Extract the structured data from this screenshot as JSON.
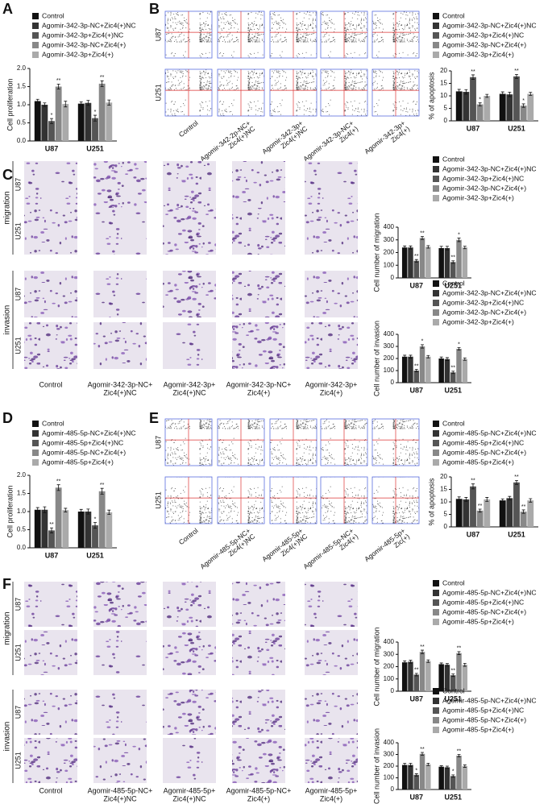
{
  "panel_labels": [
    "A",
    "B",
    "C",
    "D",
    "E",
    "F"
  ],
  "figures": {
    "B": {
      "row_labels": [
        "U87",
        "U251"
      ],
      "column_labels": [
        [
          "Control"
        ],
        [
          "Agomir-342-2p-NC+",
          "Zic4(+)NC"
        ],
        [
          "Agomir-342-3p+",
          "Zic4(+)NC"
        ],
        [
          "Agomir-342-3p-NC+",
          "Zic4(+)"
        ],
        [
          "Agomir-342-3p+",
          "Zic4(+)"
        ]
      ]
    },
    "C": {
      "group_labels": [
        "migration",
        "invasion"
      ],
      "row_labels": [
        "U87",
        "U251"
      ],
      "column_labels": [
        [
          "Control"
        ],
        [
          "Agomir-342-3p-NC+",
          "Zic4(+)NC"
        ],
        [
          "Agomir-342-3p+",
          "Zic4(+)NC"
        ],
        [
          "Agomir-342-3p-NC+",
          "Zic4(+)"
        ],
        [
          "Agomir-342-3p+",
          "Zic4(+)"
        ]
      ]
    },
    "E": {
      "row_labels": [
        "U87",
        "U251"
      ],
      "column_labels": [
        [
          "Control"
        ],
        [
          "Agomir-485-5p-NC+",
          "Zic4(+)NC"
        ],
        [
          "Agomir-485-5p+",
          "Zic4(+)NC"
        ],
        [
          "Agomir-485-5p-NC+",
          "Zic4(+)"
        ],
        [
          "Agomir-485-5p+",
          "Zic(+)"
        ]
      ]
    },
    "F": {
      "group_labels": [
        "migration",
        "invasion"
      ],
      "row_labels": [
        "U87",
        "U251"
      ],
      "column_labels": [
        [
          "Control"
        ],
        [
          "Agomir-485-5p-NC+",
          "Zic4(+)NC"
        ],
        [
          "Agomir-485-5p+",
          "Zic4(+)NC"
        ],
        [
          "Agomir-485-5p-NC+",
          "Zic4(+)"
        ],
        [
          "Agomir-485-5p+",
          "Zic4(+)"
        ]
      ]
    }
  },
  "chart_data": [
    {
      "type": "bar",
      "ylabel": "Cell proliferation",
      "categories": [
        "U87",
        "U251"
      ],
      "ylim": [
        0,
        2
      ],
      "yticks": [
        {
          "value": 0,
          "label": "0.0"
        },
        0.5,
        {
          "value": 1,
          "label": "1.0"
        },
        1.5,
        {
          "value": 2,
          "label": "2.0"
        }
      ],
      "series": [
        {
          "name": "Control",
          "color": "#111111",
          "values": [
            1.1,
            1.03
          ],
          "errors": [
            0.05,
            0.05
          ],
          "annotations": [
            null,
            null
          ]
        },
        {
          "name": "Agomir-342-3p-NC+Zic4(+)NC",
          "color": "#333333",
          "values": [
            1.0,
            1.05
          ],
          "errors": [
            0.05,
            0.07
          ],
          "annotations": [
            null,
            null
          ]
        },
        {
          "name": "Agomir-342-3p+Zic4(+)NC",
          "color": "#555555",
          "values": [
            0.55,
            0.63
          ],
          "errors": [
            0.07,
            0.08
          ],
          "annotations": [
            "*",
            "*"
          ]
        },
        {
          "name": "Agomir-342-3p-NC+Zic4(+)",
          "color": "#888888",
          "values": [
            1.5,
            1.58
          ],
          "errors": [
            0.07,
            0.08
          ],
          "annotations": [
            "**",
            "**"
          ]
        },
        {
          "name": "Agomir-342-3p+Zic4(+)",
          "color": "#aaaaaa",
          "values": [
            1.02,
            1.06
          ],
          "errors": [
            0.08,
            0.07
          ],
          "annotations": [
            null,
            null
          ]
        }
      ]
    },
    {
      "type": "bar",
      "ylabel": "% of apoptosis",
      "categories": [
        "U87",
        "U251"
      ],
      "ylim": [
        0,
        20
      ],
      "yticks": [
        0,
        5,
        10,
        15,
        20
      ],
      "series": [
        {
          "name": "Control",
          "color": "#111111",
          "values": [
            11.8,
            10.8
          ],
          "errors": [
            0.8,
            0.8
          ],
          "annotations": [
            null,
            null
          ]
        },
        {
          "name": "Agomir-342-3p-NC+Zic4(+)NC",
          "color": "#333333",
          "values": [
            11.6,
            10.6
          ],
          "errors": [
            0.9,
            0.9
          ],
          "annotations": [
            null,
            null
          ]
        },
        {
          "name": "Agomir-342-3p+Zic4(+)NC",
          "color": "#555555",
          "values": [
            17.5,
            17.8
          ],
          "errors": [
            0.9,
            0.8
          ],
          "annotations": [
            "**",
            "**"
          ]
        },
        {
          "name": "Agomir-342-3p-NC+Zic4(+)",
          "color": "#888888",
          "values": [
            6.6,
            6.1
          ],
          "errors": [
            0.6,
            0.7
          ],
          "annotations": [
            "*",
            "*"
          ]
        },
        {
          "name": "Agomir-342-3p+Zic4(+)",
          "color": "#aaaaaa",
          "values": [
            10.0,
            10.8
          ],
          "errors": [
            0.6,
            0.6
          ],
          "annotations": [
            null,
            null
          ]
        }
      ]
    },
    {
      "type": "bar",
      "ylabel": "Cell number of migration",
      "categories": [
        "U87",
        "U251"
      ],
      "ylim": [
        0,
        400
      ],
      "yticks": [
        0,
        100,
        200,
        300,
        400
      ],
      "series": [
        {
          "name": "Control",
          "color": "#111111",
          "values": [
            240,
            235
          ],
          "errors": [
            12,
            14
          ],
          "annotations": [
            null,
            null
          ]
        },
        {
          "name": "Agomir-342-3p-NC+Zic4(+)NC",
          "color": "#333333",
          "values": [
            240,
            235
          ],
          "errors": [
            12,
            14
          ],
          "annotations": [
            null,
            null
          ]
        },
        {
          "name": "Agomir-342-3p+Zic4(+)NC",
          "color": "#555555",
          "values": [
            135,
            125
          ],
          "errors": [
            10,
            10
          ],
          "annotations": [
            "**",
            "**"
          ]
        },
        {
          "name": "Agomir-342-3p-NC+Zic4(+)",
          "color": "#888888",
          "values": [
            315,
            300
          ],
          "errors": [
            12,
            14
          ],
          "annotations": [
            "**",
            "*"
          ]
        },
        {
          "name": "Agomir-342-3p+Zic4(+)",
          "color": "#aaaaaa",
          "values": [
            245,
            240
          ],
          "errors": [
            10,
            10
          ],
          "annotations": [
            null,
            null
          ]
        }
      ]
    },
    {
      "type": "bar",
      "ylabel": "Cell number of invasion",
      "categories": [
        "U87",
        "U251"
      ],
      "ylim": [
        0,
        400
      ],
      "yticks": [
        0,
        100,
        200,
        300,
        400
      ],
      "series": [
        {
          "name": "Control",
          "color": "#111111",
          "values": [
            215,
            200
          ],
          "errors": [
            12,
            12
          ],
          "annotations": [
            null,
            null
          ]
        },
        {
          "name": "Agomir-342-3p-NC+Zic4(+)NC",
          "color": "#333333",
          "values": [
            215,
            195
          ],
          "errors": [
            12,
            12
          ],
          "annotations": [
            null,
            null
          ]
        },
        {
          "name": "Agomir-342-3p+Zic4(+)NC",
          "color": "#555555",
          "values": [
            100,
            85
          ],
          "errors": [
            10,
            10
          ],
          "annotations": [
            "**",
            "**"
          ]
        },
        {
          "name": "Agomir-342-3p-NC+Zic4(+)",
          "color": "#888888",
          "values": [
            300,
            280
          ],
          "errors": [
            14,
            10
          ],
          "annotations": [
            "*",
            "*"
          ]
        },
        {
          "name": "Agomir-342-3p+Zic4(+)",
          "color": "#aaaaaa",
          "values": [
            215,
            195
          ],
          "errors": [
            10,
            10
          ],
          "annotations": [
            null,
            null
          ]
        }
      ]
    },
    {
      "type": "bar",
      "ylabel": "Cell proliferation",
      "categories": [
        "U87",
        "U251"
      ],
      "ylim": [
        0,
        2
      ],
      "yticks": [
        {
          "value": 0,
          "label": "0.0"
        },
        0.5,
        {
          "value": 1,
          "label": "1.0"
        },
        1.5,
        {
          "value": 2,
          "label": "2.0"
        }
      ],
      "series": [
        {
          "name": "Control",
          "color": "#111111",
          "values": [
            1.05,
            1.0
          ],
          "errors": [
            0.06,
            0.06
          ],
          "annotations": [
            null,
            null
          ]
        },
        {
          "name": "Agomir-485-5p-NC+Zic4(+)NC",
          "color": "#333333",
          "values": [
            1.05,
            1.0
          ],
          "errors": [
            0.08,
            0.07
          ],
          "annotations": [
            null,
            null
          ]
        },
        {
          "name": "Agomir-485-5p+Zic4(+)NC",
          "color": "#555555",
          "values": [
            0.48,
            0.62
          ],
          "errors": [
            0.07,
            0.08
          ],
          "annotations": [
            "**",
            "*"
          ]
        },
        {
          "name": "Agomir-485-5p-NC+Zic4(+)",
          "color": "#888888",
          "values": [
            1.66,
            1.56
          ],
          "errors": [
            0.08,
            0.08
          ],
          "annotations": [
            "**",
            "**"
          ]
        },
        {
          "name": "Agomir-485-5p+Zic4(+)",
          "color": "#aaaaaa",
          "values": [
            1.04,
            0.98
          ],
          "errors": [
            0.05,
            0.06
          ],
          "annotations": [
            null,
            null
          ]
        }
      ]
    },
    {
      "type": "bar",
      "ylabel": "% of apoptosis",
      "categories": [
        "U87",
        "U251"
      ],
      "ylim": [
        0,
        20
      ],
      "yticks": [
        0,
        5,
        10,
        15,
        20
      ],
      "series": [
        {
          "name": "Control",
          "color": "#111111",
          "values": [
            11.2,
            10.6
          ],
          "errors": [
            0.8,
            0.6
          ],
          "annotations": [
            null,
            null
          ]
        },
        {
          "name": "Agomir-485-5p-NC+Zic4(+)NC",
          "color": "#333333",
          "values": [
            11.0,
            11.5
          ],
          "errors": [
            0.8,
            0.7
          ],
          "annotations": [
            null,
            null
          ]
        },
        {
          "name": "Agomir-485-5p+Zic4(+)NC",
          "color": "#555555",
          "values": [
            16.2,
            17.8
          ],
          "errors": [
            1.0,
            0.8
          ],
          "annotations": [
            "**",
            "**"
          ]
        },
        {
          "name": "Agomir-485-5p-NC+Zic4(+)",
          "color": "#888888",
          "values": [
            6.5,
            6.1
          ],
          "errors": [
            0.6,
            0.7
          ],
          "annotations": [
            "**",
            "**"
          ]
        },
        {
          "name": "Agomir-485-5p+Zic4(+)",
          "color": "#aaaaaa",
          "values": [
            11.0,
            10.6
          ],
          "errors": [
            0.8,
            0.7
          ],
          "annotations": [
            null,
            null
          ]
        }
      ]
    },
    {
      "type": "bar",
      "ylabel": "Cell number of migration",
      "categories": [
        "U87",
        "U251"
      ],
      "ylim": [
        0,
        400
      ],
      "yticks": [
        0,
        100,
        200,
        300,
        400
      ],
      "series": [
        {
          "name": "Control",
          "color": "#111111",
          "values": [
            235,
            220
          ],
          "errors": [
            12,
            10
          ],
          "annotations": [
            null,
            null
          ]
        },
        {
          "name": "Agomir-485-5p-NC+Zic4(+)NC",
          "color": "#333333",
          "values": [
            240,
            215
          ],
          "errors": [
            12,
            10
          ],
          "annotations": [
            null,
            null
          ]
        },
        {
          "name": "Agomir-485-5p+Zic4(+)NC",
          "color": "#555555",
          "values": [
            135,
            130
          ],
          "errors": [
            10,
            10
          ],
          "annotations": [
            "**",
            "**"
          ]
        },
        {
          "name": "Agomir-485-5p-NC+Zic4(+)",
          "color": "#888888",
          "values": [
            320,
            310
          ],
          "errors": [
            14,
            12
          ],
          "annotations": [
            "**",
            "**"
          ]
        },
        {
          "name": "Agomir-485-5p+Zic4(+)",
          "color": "#aaaaaa",
          "values": [
            245,
            215
          ],
          "errors": [
            10,
            12
          ],
          "annotations": [
            null,
            null
          ]
        }
      ]
    },
    {
      "type": "bar",
      "ylabel": "Cell number of invasion",
      "categories": [
        "U87",
        "U251"
      ],
      "ylim": [
        0,
        400
      ],
      "yticks": [
        0,
        100,
        200,
        300,
        400
      ],
      "series": [
        {
          "name": "Control",
          "color": "#111111",
          "values": [
            210,
            195
          ],
          "errors": [
            14,
            8
          ],
          "annotations": [
            null,
            null
          ]
        },
        {
          "name": "Agomir-485-5p-NC+Zic4(+)NC",
          "color": "#333333",
          "values": [
            210,
            190
          ],
          "errors": [
            14,
            10
          ],
          "annotations": [
            null,
            null
          ]
        },
        {
          "name": "Agomir-485-5p+Zic4(+)NC",
          "color": "#555555",
          "values": [
            125,
            115
          ],
          "errors": [
            10,
            10
          ],
          "annotations": [
            "*",
            "*"
          ]
        },
        {
          "name": "Agomir-485-5p-NC+Zic4(+)",
          "color": "#888888",
          "values": [
            305,
            290
          ],
          "errors": [
            12,
            10
          ],
          "annotations": [
            "**",
            "**"
          ]
        },
        {
          "name": "Agomir-485-5p+Zic4(+)",
          "color": "#aaaaaa",
          "values": [
            215,
            200
          ],
          "errors": [
            10,
            10
          ],
          "annotations": [
            null,
            null
          ]
        }
      ]
    }
  ]
}
